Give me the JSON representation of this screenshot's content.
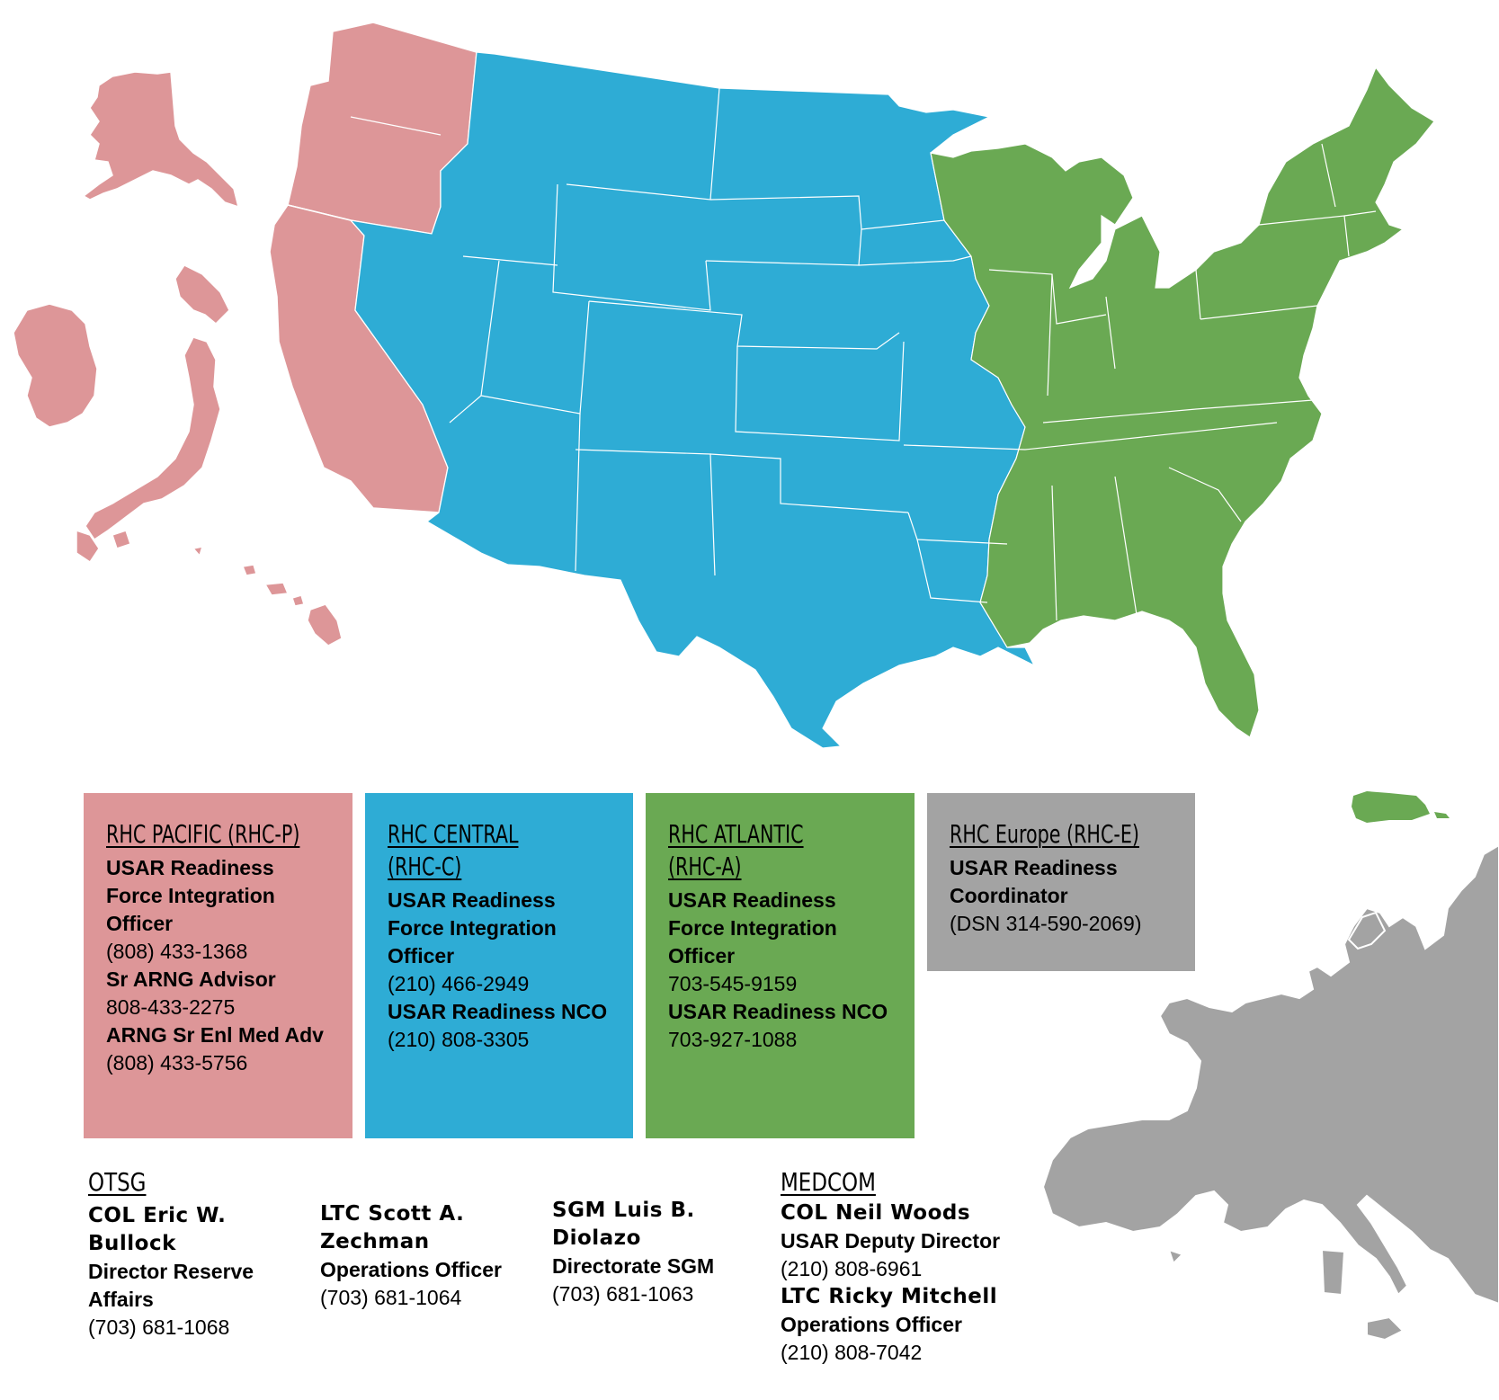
{
  "colors": {
    "pacific": "#dd9698",
    "central": "#2eacd5",
    "atlantic": "#6aa953",
    "europe": "#a3a3a3"
  },
  "regions": {
    "pacific": {
      "title": "RHC PACIFIC (RHC-P)",
      "lines": [
        {
          "kind": "role",
          "text": "USAR Readiness Force Integration Officer"
        },
        {
          "kind": "phone",
          "text": "(808) 433-1368"
        },
        {
          "kind": "role",
          "text": "Sr ARNG Advisor"
        },
        {
          "kind": "phone",
          "text": "808-433-2275"
        },
        {
          "kind": "role",
          "text": "ARNG Sr Enl Med Adv"
        },
        {
          "kind": "phone",
          "text": "(808) 433-5756"
        }
      ]
    },
    "central": {
      "title": "RHC CENTRAL (RHC-C)",
      "lines": [
        {
          "kind": "role",
          "text": "USAR Readiness Force Integration Officer"
        },
        {
          "kind": "phone",
          "text": "(210) 466-2949"
        },
        {
          "kind": "role",
          "text": "USAR Readiness NCO"
        },
        {
          "kind": "phone",
          "text": "(210) 808-3305"
        }
      ]
    },
    "atlantic": {
      "title": "RHC ATLANTIC (RHC-A)",
      "lines": [
        {
          "kind": "role",
          "text": "USAR Readiness Force Integration Officer"
        },
        {
          "kind": "phone",
          "text": "703-545-9159"
        },
        {
          "kind": "role",
          "text": "USAR Readiness NCO"
        },
        {
          "kind": "phone",
          "text": "703-927-1088"
        }
      ]
    },
    "europe": {
      "title": "RHC Europe (RHC-E)",
      "lines": [
        {
          "kind": "role",
          "text": "USAR Readiness Coordinator"
        },
        {
          "kind": "phone",
          "text": "(DSN 314-590-2069)"
        }
      ]
    }
  },
  "otsg": {
    "title": "OTSG",
    "people": [
      {
        "name": "COL Eric W. Bullock",
        "title": "Director Reserve Affairs",
        "phone": "(703) 681-1068"
      },
      {
        "name": "LTC Scott A. Zechman",
        "title": "Operations Officer",
        "phone": "(703) 681-1064"
      },
      {
        "name": "SGM Luis B. Diolazo",
        "title": "Directorate SGM",
        "phone": "(703) 681-1063"
      }
    ]
  },
  "medcom": {
    "title": "MEDCOM",
    "people": [
      {
        "name": "COL Neil Woods",
        "title": "USAR Deputy Director",
        "phone": "(210) 808-6961"
      },
      {
        "name": "LTC Ricky Mitchell",
        "title": "Operations Officer",
        "phone": "(210) 808-7042"
      }
    ]
  }
}
